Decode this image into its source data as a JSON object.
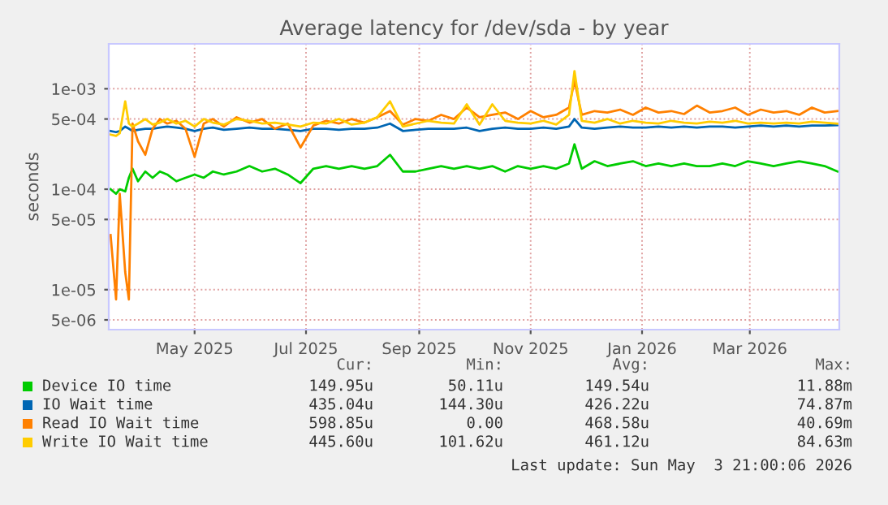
{
  "chart_data": {
    "type": "line",
    "title": "Average latency for /dev/sda - by year",
    "ylabel": "seconds",
    "x": [
      "2025-03-31",
      "2025-04-03",
      "2025-04-05",
      "2025-04-08",
      "2025-04-10",
      "2025-04-12",
      "2025-04-15",
      "2025-04-19",
      "2025-04-23",
      "2025-04-27",
      "2025-05-01",
      "2025-05-06",
      "2025-05-11",
      "2025-05-16",
      "2025-05-21",
      "2025-05-26",
      "2025-06-01",
      "2025-06-08",
      "2025-06-15",
      "2025-06-22",
      "2025-06-29",
      "2025-07-06",
      "2025-07-13",
      "2025-07-20",
      "2025-07-27",
      "2025-08-03",
      "2025-08-10",
      "2025-08-17",
      "2025-08-24",
      "2025-08-31",
      "2025-09-07",
      "2025-09-14",
      "2025-09-21",
      "2025-09-28",
      "2025-10-05",
      "2025-10-12",
      "2025-10-19",
      "2025-10-26",
      "2025-11-02",
      "2025-11-09",
      "2025-11-16",
      "2025-11-23",
      "2025-11-30",
      "2025-12-07",
      "2025-12-10",
      "2025-12-14",
      "2025-12-21",
      "2025-12-28",
      "2026-01-04",
      "2026-01-11",
      "2026-01-18",
      "2026-01-25",
      "2026-02-01",
      "2026-02-08",
      "2026-02-15",
      "2026-02-22",
      "2026-03-01",
      "2026-03-08",
      "2026-03-15",
      "2026-03-22",
      "2026-03-29",
      "2026-04-05",
      "2026-04-12",
      "2026-04-19",
      "2026-04-26",
      "2026-05-03"
    ],
    "series": [
      {
        "name": "Device IO time",
        "color": "#00cc00",
        "values": [
          0.0001,
          9e-05,
          0.0001,
          9.5e-05,
          0.00013,
          0.00016,
          0.00012,
          0.00015,
          0.00013,
          0.00015,
          0.00014,
          0.00012,
          0.00013,
          0.00014,
          0.00013,
          0.00015,
          0.00014,
          0.00015,
          0.00017,
          0.00015,
          0.00016,
          0.00014,
          0.000115,
          0.00016,
          0.00017,
          0.00016,
          0.00017,
          0.00016,
          0.00017,
          0.00022,
          0.00015,
          0.00015,
          0.00016,
          0.00017,
          0.00016,
          0.00017,
          0.00016,
          0.00017,
          0.00015,
          0.00017,
          0.00016,
          0.00017,
          0.00016,
          0.00018,
          0.00028,
          0.00016,
          0.00019,
          0.00017,
          0.00018,
          0.00019,
          0.00017,
          0.00018,
          0.00017,
          0.00018,
          0.00017,
          0.00017,
          0.00018,
          0.00017,
          0.00019,
          0.00018,
          0.00017,
          0.00018,
          0.00019,
          0.00018,
          0.00017,
          0.00015
        ]
      },
      {
        "name": "IO Wait time",
        "color": "#0066b3",
        "values": [
          0.00038,
          0.00037,
          0.00038,
          0.00042,
          0.0004,
          0.00038,
          0.00039,
          0.0004,
          0.0004,
          0.00041,
          0.00042,
          0.00041,
          0.0004,
          0.00038,
          0.0004,
          0.00041,
          0.00039,
          0.0004,
          0.00041,
          0.0004,
          0.0004,
          0.00039,
          0.00038,
          0.0004,
          0.0004,
          0.00039,
          0.0004,
          0.0004,
          0.00041,
          0.00045,
          0.00038,
          0.00039,
          0.0004,
          0.0004,
          0.0004,
          0.00041,
          0.00038,
          0.0004,
          0.00041,
          0.0004,
          0.0004,
          0.00041,
          0.0004,
          0.00042,
          0.0005,
          0.00041,
          0.0004,
          0.00041,
          0.00042,
          0.00041,
          0.00041,
          0.00042,
          0.00041,
          0.00042,
          0.00041,
          0.00042,
          0.00042,
          0.00041,
          0.00042,
          0.00043,
          0.00042,
          0.00043,
          0.00042,
          0.00043,
          0.00043,
          0.000435
        ]
      },
      {
        "name": "Read IO Wait time",
        "color": "#ff8000",
        "values": [
          3.5e-05,
          8e-06,
          9e-05,
          1.5e-05,
          8e-06,
          0.00045,
          0.0003,
          0.00022,
          0.0004,
          0.0005,
          0.00045,
          0.00048,
          0.0004,
          0.00021,
          0.00045,
          0.0005,
          0.00042,
          0.00052,
          0.00046,
          0.0005,
          0.0004,
          0.00045,
          0.00026,
          0.00043,
          0.00048,
          0.00045,
          0.0005,
          0.00046,
          0.00052,
          0.0006,
          0.00044,
          0.0005,
          0.00048,
          0.00055,
          0.0005,
          0.00065,
          0.00052,
          0.00055,
          0.00058,
          0.0005,
          0.0006,
          0.00052,
          0.00055,
          0.00065,
          0.0012,
          0.00055,
          0.0006,
          0.00058,
          0.00062,
          0.00055,
          0.00065,
          0.00058,
          0.0006,
          0.00056,
          0.00068,
          0.00058,
          0.0006,
          0.00065,
          0.00055,
          0.00062,
          0.00058,
          0.0006,
          0.00055,
          0.00065,
          0.00058,
          0.0006
        ]
      },
      {
        "name": "Write IO Wait time",
        "color": "#ffcc00",
        "values": [
          0.00035,
          0.00034,
          0.00036,
          0.00075,
          0.00045,
          0.00042,
          0.00045,
          0.0005,
          0.00044,
          0.00046,
          0.0005,
          0.00045,
          0.00048,
          0.00042,
          0.0005,
          0.00046,
          0.00044,
          0.0005,
          0.00048,
          0.00045,
          0.00046,
          0.00044,
          0.00042,
          0.00046,
          0.00045,
          0.0005,
          0.00044,
          0.00046,
          0.00052,
          0.00075,
          0.00042,
          0.00045,
          0.00048,
          0.00046,
          0.00045,
          0.0007,
          0.00044,
          0.0007,
          0.00048,
          0.00046,
          0.00045,
          0.00048,
          0.00044,
          0.00055,
          0.0015,
          0.00048,
          0.00046,
          0.0005,
          0.00045,
          0.00048,
          0.00046,
          0.00045,
          0.00048,
          0.00046,
          0.00045,
          0.00047,
          0.00046,
          0.00048,
          0.00045,
          0.00046,
          0.00045,
          0.00046,
          0.00045,
          0.00047,
          0.00046,
          0.00045
        ]
      }
    ],
    "log": "y",
    "ylim": [
      4e-06,
      0.0028
    ],
    "yticks": [
      {
        "value": 0.001,
        "label": "1e-03"
      },
      {
        "value": 0.0005,
        "label": "5e-04"
      },
      {
        "value": 0.0001,
        "label": "1e-04"
      },
      {
        "value": 5e-05,
        "label": "5e-05"
      },
      {
        "value": 1e-05,
        "label": "1e-05"
      },
      {
        "value": 5e-06,
        "label": "5e-06"
      }
    ],
    "xlim": [
      "2025-03-30",
      "2026-05-04"
    ],
    "xticks": [
      {
        "value": "2025-05-16",
        "label": "May 2025"
      },
      {
        "value": "2025-07-16",
        "label": "Jul 2025"
      },
      {
        "value": "2025-09-16",
        "label": "Sep 2025"
      },
      {
        "value": "2025-11-16",
        "label": "Nov 2025"
      },
      {
        "value": "2026-01-16",
        "label": "Jan 2026"
      },
      {
        "value": "2026-03-16",
        "label": "Mar 2026"
      }
    ],
    "grid": true,
    "legend": "bottom",
    "marker": "none",
    "line_style": "solid",
    "annotations": [
      "Cur:",
      "Min:",
      "Avg:",
      "Max:",
      "149.95u",
      "50.11u",
      "149.54u",
      "11.88m",
      "435.04u",
      "144.30u",
      "426.22u",
      "74.87m",
      "598.85u",
      "0.00",
      "468.58u",
      "40.69m",
      "445.60u",
      "101.62u",
      "461.12u",
      "84.63m",
      "Last update: Sun May  3 21:00:06 2026"
    ]
  }
}
